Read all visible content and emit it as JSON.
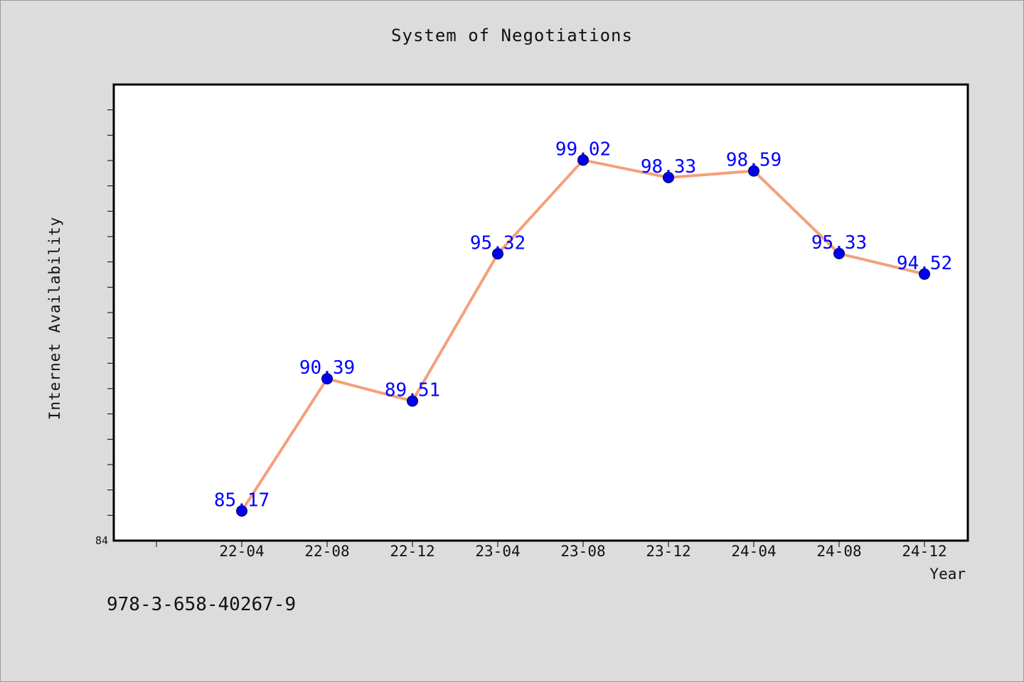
{
  "chart_data": {
    "type": "line",
    "title": "System of Negotiations",
    "xlabel": "Year",
    "ylabel": "Internet Availability",
    "categories": [
      "22-04",
      "22-08",
      "22-12",
      "23-04",
      "23-08",
      "23-12",
      "24-04",
      "24-08",
      "24-12"
    ],
    "series": [
      {
        "values": [
          85.17,
          90.39,
          89.51,
          95.32,
          99.02,
          98.33,
          98.59,
          95.33,
          94.52
        ]
      }
    ],
    "data_labels": [
      "85.17",
      "90.39",
      "89.51",
      "95.32",
      "99.02",
      "98.33",
      "98.59",
      "95.33",
      "94.52"
    ],
    "ylim": [
      84,
      102
    ],
    "y_tick_labels": [
      "84"
    ],
    "grid": false,
    "colors": {
      "line": "#f4a07c",
      "marker": "#0000ee",
      "data_label": "#0000ff",
      "plot_background": "#ffffff",
      "page_background": "#dcdcdc"
    }
  },
  "footer": {
    "code": "978-3-658-40267-9"
  }
}
